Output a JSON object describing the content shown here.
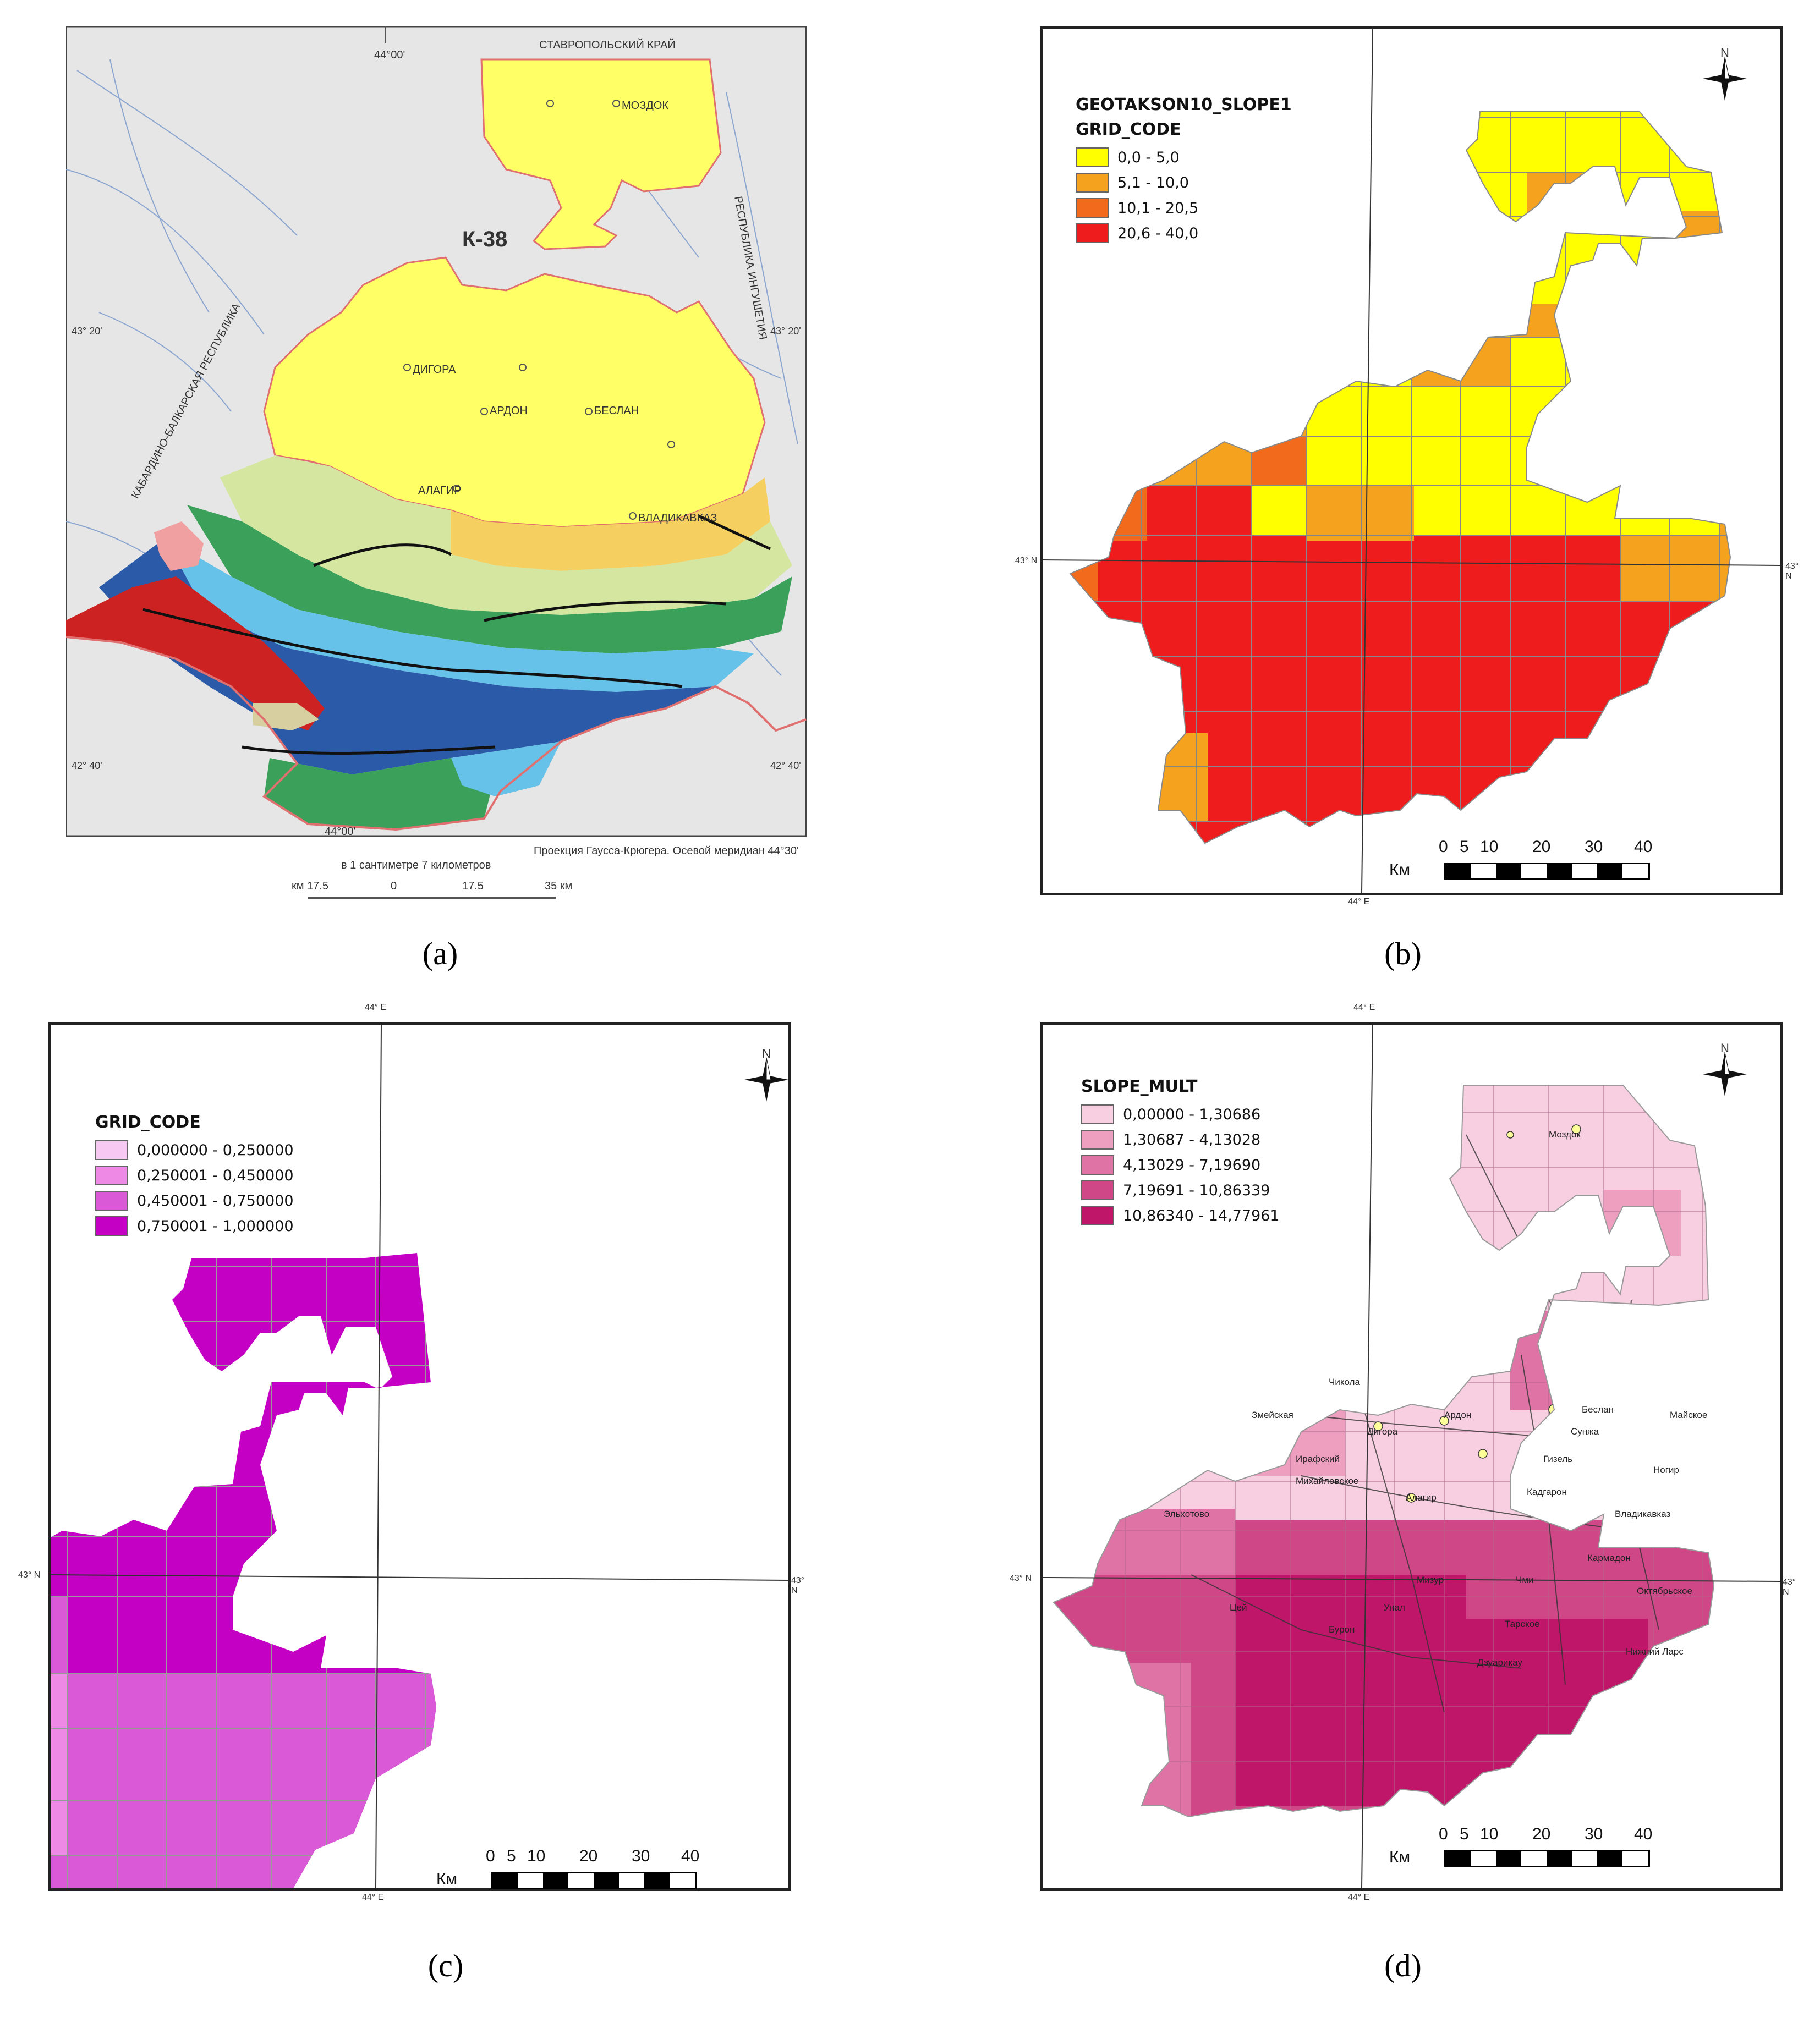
{
  "panels": {
    "a": {
      "caption": "(a)",
      "sheet": "К-38",
      "label_lon": "44°00'",
      "label_lon_bottom": "44°00'",
      "lat_43_20": "43° 20'",
      "lat_42_40": "42° 40'",
      "top_label": "СТАВРОПОЛЬСКИЙ КРАЙ",
      "region_left": "КАБАРДИНО-БАЛКАРСКАЯ РЕСПУБЛИКА",
      "region_right": "РЕСПУБЛИКА ИНГУШЕТИЯ",
      "projection": "Проекция Гаусса-Крюгера. Осевой меридиан 44°30'",
      "scale_text": "в 1 сантиметре 7 километров",
      "scale_ticks": [
        "км 17.5",
        "0",
        "17.5",
        "35 км"
      ],
      "cities": [
        "МОЗДОК",
        "БЕСЛАН",
        "АРДОН",
        "ДИГОРА",
        "АЛАГИР",
        "ВЛАДИКАВКАЗ"
      ],
      "colors": {
        "yellow": "#ffff66",
        "orange": "#f5c542",
        "lightgreen": "#d4e6a0",
        "green": "#3aa05a",
        "lightblue": "#66c2e8",
        "blue": "#2f8fd6",
        "darkblue": "#2a5aa8",
        "red": "#cc2222",
        "pink": "#f0a0a0",
        "gray": "#d8d8d8"
      }
    },
    "b": {
      "caption": "(b)",
      "legend_title1": "GEOTAKSON10_SLOPE1",
      "legend_title2": "GRID_CODE",
      "legend": [
        {
          "label": "0,0 - 5,0",
          "color": "#ffff00"
        },
        {
          "label": "5,1 - 10,0",
          "color": "#f5a31e"
        },
        {
          "label": "10,1 - 20,5",
          "color": "#f26b1d"
        },
        {
          "label": "20,6 - 40,0",
          "color": "#ee1c1c"
        }
      ],
      "lon": "44° E",
      "lat": "43° N",
      "north": "N",
      "scale_unit": "Км",
      "scale_ticks": [
        "0",
        "5",
        "10",
        "20",
        "30",
        "40"
      ]
    },
    "c": {
      "caption": "(c)",
      "legend_title": "GRID_CODE",
      "legend": [
        {
          "label": "0,000000 - 0,250000",
          "color": "#f7c8f2"
        },
        {
          "label": "0,250001 - 0,450000",
          "color": "#ee8ae6"
        },
        {
          "label": "0,450001 - 0,750000",
          "color": "#d959d6"
        },
        {
          "label": "0,750001 - 1,000000",
          "color": "#c400c4"
        }
      ],
      "lon": "44° E",
      "lat": "43° N",
      "north": "N",
      "scale_unit": "Км",
      "scale_ticks": [
        "0",
        "5",
        "10",
        "20",
        "30",
        "40"
      ]
    },
    "d": {
      "caption": "(d)",
      "legend_title": "SLOPE_MULT",
      "legend": [
        {
          "label": "0,00000 - 1,30686",
          "color": "#f8cfe0"
        },
        {
          "label": "1,30687 - 4,13028",
          "color": "#ee9fc0"
        },
        {
          "label": "4,13029 - 7,19690",
          "color": "#e073a5"
        },
        {
          "label": "7,19691 - 10,86339",
          "color": "#d04788"
        },
        {
          "label": "10,86340 - 14,77961",
          "color": "#c0166a"
        }
      ],
      "lon": "44° E",
      "lat": "43° N",
      "north": "N",
      "scale_unit": "Км",
      "scale_ticks": [
        "0",
        "5",
        "10",
        "20",
        "30",
        "40"
      ],
      "places": [
        "Моздок",
        "Беслан",
        "Ардон",
        "Дигора",
        "Алагир",
        "Владикавказ",
        "Чикола",
        "Ирафский",
        "Цей",
        "Бурон",
        "Унал",
        "Мизур",
        "Кармадон",
        "Чми",
        "Нижний Ларс",
        "Дзуарикау",
        "Кадгарон",
        "Эльхотово",
        "Змейская",
        "Михайловское",
        "Гизель",
        "Сунжа",
        "Ногир",
        "Майское",
        "Октябрьское",
        "Тарское"
      ]
    }
  }
}
